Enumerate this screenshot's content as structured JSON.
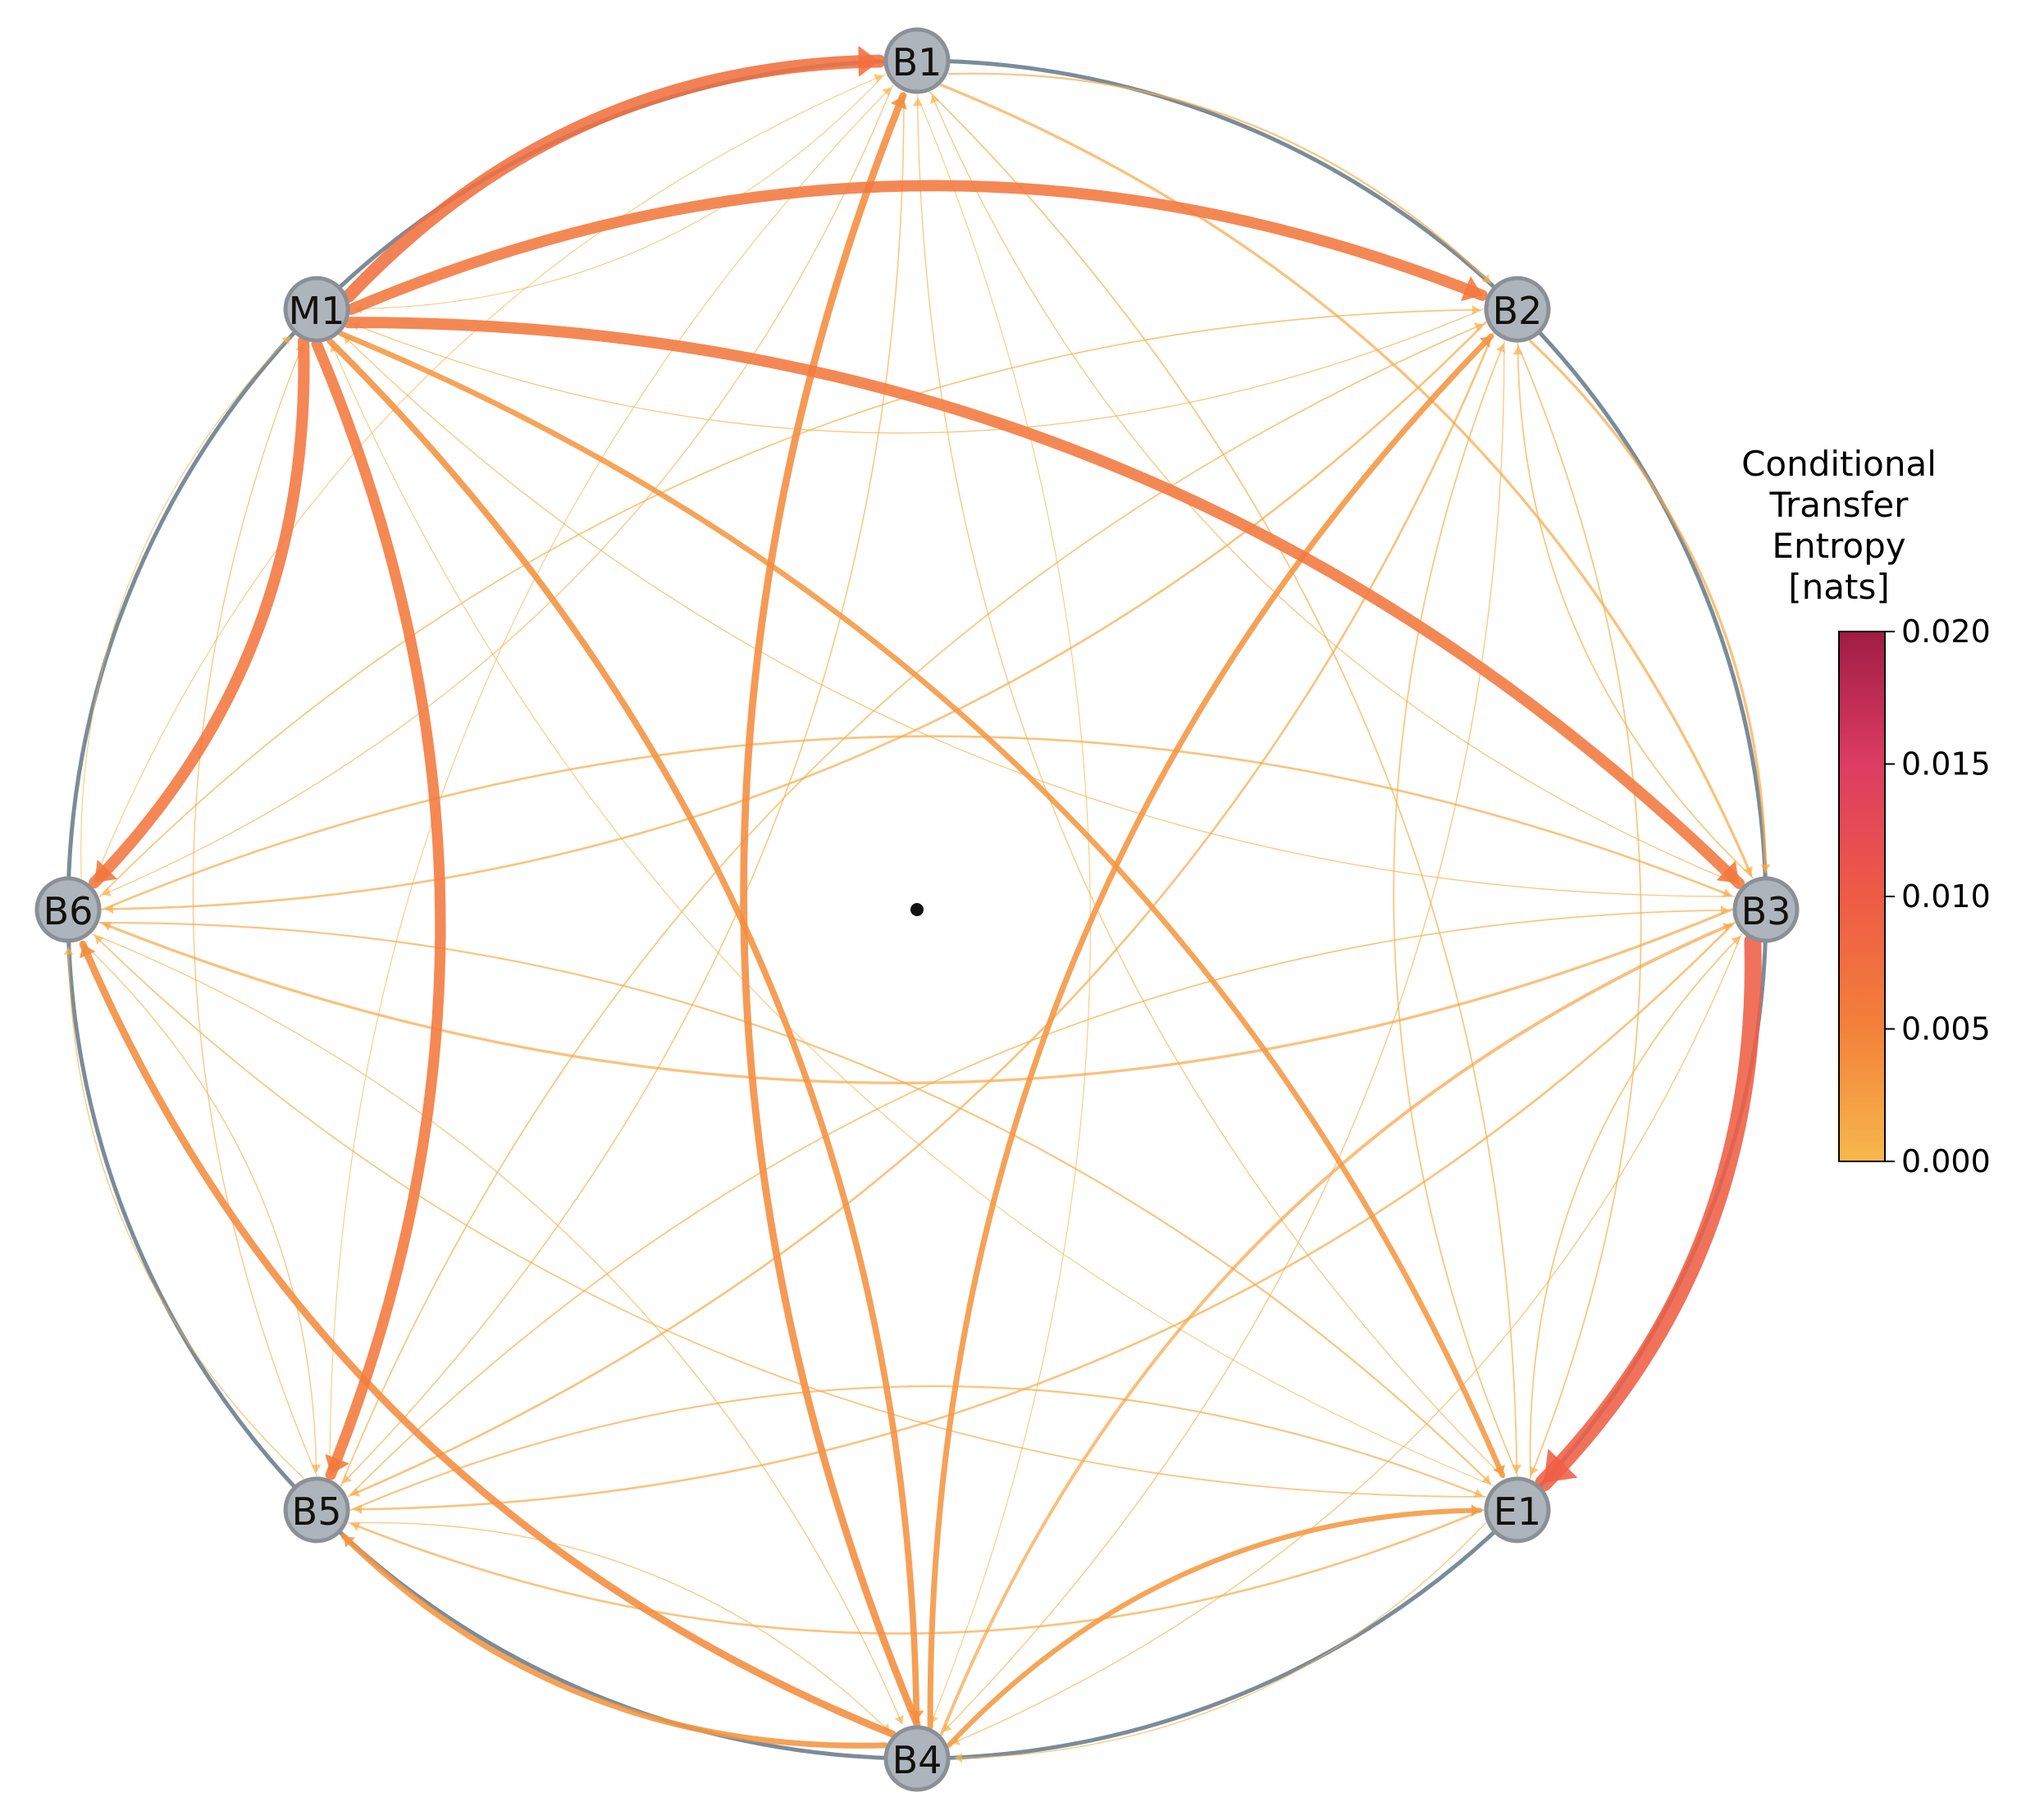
{
  "diagram": {
    "nodes": [
      {
        "id": "B1",
        "label": "B1",
        "angle": 90
      },
      {
        "id": "B2",
        "label": "B2",
        "angle": 45
      },
      {
        "id": "B3",
        "label": "B3",
        "angle": 0
      },
      {
        "id": "E1",
        "label": "E1",
        "angle": -45
      },
      {
        "id": "B4",
        "label": "B4",
        "angle": -90
      },
      {
        "id": "B5",
        "label": "B5",
        "angle": -135
      },
      {
        "id": "B6",
        "label": "B6",
        "angle": 180
      },
      {
        "id": "M1",
        "label": "M1",
        "angle": 135
      }
    ],
    "edges": [
      {
        "from": "M1",
        "to": "B1",
        "value": 0.0072
      },
      {
        "from": "M1",
        "to": "B2",
        "value": 0.0062
      },
      {
        "from": "M1",
        "to": "B3",
        "value": 0.0063
      },
      {
        "from": "M1",
        "to": "B6",
        "value": 0.0064
      },
      {
        "from": "M1",
        "to": "B5",
        "value": 0.006
      },
      {
        "from": "M1",
        "to": "B4",
        "value": 0.0035
      },
      {
        "from": "M1",
        "to": "E1",
        "value": 0.003
      },
      {
        "from": "B3",
        "to": "E1",
        "value": 0.0095
      },
      {
        "from": "B4",
        "to": "B1",
        "value": 0.004
      },
      {
        "from": "B4",
        "to": "B2",
        "value": 0.0032
      },
      {
        "from": "B4",
        "to": "B6",
        "value": 0.004
      },
      {
        "from": "B4",
        "to": "B5",
        "value": 0.0032
      },
      {
        "from": "B4",
        "to": "E1",
        "value": 0.0028
      },
      {
        "from": "B4",
        "to": "B3",
        "value": 0.0018
      },
      {
        "from": "B1",
        "to": "B3",
        "value": 0.0015
      },
      {
        "from": "B1",
        "to": "B2",
        "value": 0.001
      },
      {
        "from": "B1",
        "to": "E1",
        "value": 0.0008
      },
      {
        "from": "B1",
        "to": "B5",
        "value": 0.0007
      },
      {
        "from": "B1",
        "to": "B6",
        "value": 0.0006
      },
      {
        "from": "B2",
        "to": "B3",
        "value": 0.0015
      },
      {
        "from": "B2",
        "to": "B5",
        "value": 0.0012
      },
      {
        "from": "B2",
        "to": "B6",
        "value": 0.0012
      },
      {
        "from": "B2",
        "to": "E1",
        "value": 0.0008
      },
      {
        "from": "B2",
        "to": "M1",
        "value": 0.0006
      },
      {
        "from": "B3",
        "to": "B6",
        "value": 0.0015
      },
      {
        "from": "B3",
        "to": "B5",
        "value": 0.0012
      },
      {
        "from": "B3",
        "to": "B1",
        "value": 0.0006
      },
      {
        "from": "B3",
        "to": "B2",
        "value": 0.0008
      },
      {
        "from": "B3",
        "to": "M1",
        "value": 0.0006
      },
      {
        "from": "E1",
        "to": "B5",
        "value": 0.0012
      },
      {
        "from": "E1",
        "to": "B6",
        "value": 0.0008
      },
      {
        "from": "E1",
        "to": "B2",
        "value": 0.0008
      },
      {
        "from": "E1",
        "to": "B3",
        "value": 0.0008
      },
      {
        "from": "E1",
        "to": "B1",
        "value": 0.0006
      },
      {
        "from": "B5",
        "to": "E1",
        "value": 0.001
      },
      {
        "from": "B5",
        "to": "B3",
        "value": 0.0008
      },
      {
        "from": "B5",
        "to": "B2",
        "value": 0.0008
      },
      {
        "from": "B5",
        "to": "B6",
        "value": 0.0006
      },
      {
        "from": "B5",
        "to": "M1",
        "value": 0.0006
      },
      {
        "from": "B5",
        "to": "B1",
        "value": 0.0005
      },
      {
        "from": "B6",
        "to": "B3",
        "value": 0.0012
      },
      {
        "from": "B6",
        "to": "E1",
        "value": 0.001
      },
      {
        "from": "B6",
        "to": "B2",
        "value": 0.0008
      },
      {
        "from": "B6",
        "to": "B5",
        "value": 0.0006
      },
      {
        "from": "B6",
        "to": "B1",
        "value": 0.0005
      },
      {
        "from": "B6",
        "to": "M1",
        "value": 0.0005
      },
      {
        "from": "B6",
        "to": "B4",
        "value": 0.0006
      },
      {
        "from": "B5",
        "to": "B4",
        "value": 0.0006
      },
      {
        "from": "E1",
        "to": "B4",
        "value": 0.0006
      },
      {
        "from": "B2",
        "to": "B4",
        "value": 0.0006
      },
      {
        "from": "B1",
        "to": "B4",
        "value": 0.0005
      },
      {
        "from": "B3",
        "to": "B4",
        "value": 0.0006
      },
      {
        "from": "E1",
        "to": "M1",
        "value": 0.0005
      },
      {
        "from": "B1",
        "to": "M1",
        "value": 0.0005
      }
    ],
    "ring_color": "#7b8c99",
    "node_fill": "#aeb4bb",
    "node_stroke": "#8b9096",
    "center_marker_color": "#111111"
  },
  "colorbar": {
    "title_lines": [
      "Conditional",
      "Transfer",
      "Entropy",
      "[nats]"
    ],
    "ticks": [
      "0.000",
      "0.005",
      "0.010",
      "0.015",
      "0.020"
    ],
    "min": 0.0,
    "max": 0.02,
    "colormap": [
      "#f7b84b",
      "#f3813a",
      "#ee5b45",
      "#dd3c62",
      "#a01c45"
    ]
  }
}
